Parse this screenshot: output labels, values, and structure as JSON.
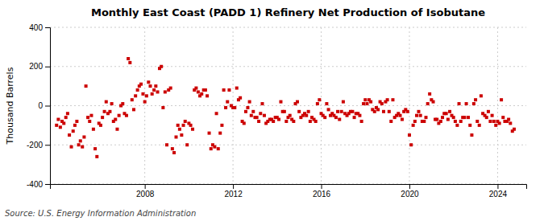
{
  "chart_data": {
    "type": "scatter",
    "title": "Monthly East Coast (PADD 1) Refinery Net Production of Isobutane",
    "ylabel": "Thousand Barrels",
    "annotations": [
      "Source: U.S. Energy Information Administration"
    ],
    "color": "#cc0000",
    "marker": "square",
    "grid": true,
    "x": [
      2004.0,
      2004.08,
      2004.17,
      2004.25,
      2004.33,
      2004.42,
      2004.5,
      2004.58,
      2004.67,
      2004.75,
      2004.83,
      2004.92,
      2005.0,
      2005.08,
      2005.17,
      2005.25,
      2005.33,
      2005.42,
      2005.5,
      2005.58,
      2005.67,
      2005.75,
      2005.83,
      2005.92,
      2006.0,
      2006.08,
      2006.17,
      2006.25,
      2006.33,
      2006.42,
      2006.5,
      2006.58,
      2006.67,
      2006.75,
      2006.83,
      2006.92,
      2007.0,
      2007.08,
      2007.17,
      2007.25,
      2007.33,
      2007.42,
      2007.5,
      2007.58,
      2007.67,
      2007.75,
      2007.83,
      2007.92,
      2008.0,
      2008.08,
      2008.17,
      2008.25,
      2008.33,
      2008.42,
      2008.5,
      2008.58,
      2008.67,
      2008.75,
      2008.83,
      2008.92,
      2009.0,
      2009.08,
      2009.17,
      2009.25,
      2009.33,
      2009.42,
      2009.5,
      2009.58,
      2009.67,
      2009.75,
      2009.83,
      2009.92,
      2010.0,
      2010.08,
      2010.17,
      2010.25,
      2010.33,
      2010.42,
      2010.5,
      2010.58,
      2010.67,
      2010.75,
      2010.83,
      2010.92,
      2011.0,
      2011.08,
      2011.17,
      2011.25,
      2011.33,
      2011.42,
      2011.5,
      2011.58,
      2011.67,
      2011.75,
      2011.83,
      2011.92,
      2012.0,
      2012.08,
      2012.17,
      2012.25,
      2012.33,
      2012.42,
      2012.5,
      2012.58,
      2012.67,
      2012.75,
      2012.83,
      2012.92,
      2013.0,
      2013.08,
      2013.17,
      2013.25,
      2013.33,
      2013.42,
      2013.5,
      2013.58,
      2013.67,
      2013.75,
      2013.83,
      2013.92,
      2014.0,
      2014.08,
      2014.17,
      2014.25,
      2014.33,
      2014.42,
      2014.5,
      2014.58,
      2014.67,
      2014.75,
      2014.83,
      2014.92,
      2015.0,
      2015.08,
      2015.17,
      2015.25,
      2015.33,
      2015.42,
      2015.5,
      2015.58,
      2015.67,
      2015.75,
      2015.83,
      2015.92,
      2016.0,
      2016.08,
      2016.17,
      2016.25,
      2016.33,
      2016.42,
      2016.5,
      2016.58,
      2016.67,
      2016.75,
      2016.83,
      2016.92,
      2017.0,
      2017.08,
      2017.17,
      2017.25,
      2017.33,
      2017.42,
      2017.5,
      2017.58,
      2017.67,
      2017.75,
      2017.83,
      2017.92,
      2018.0,
      2018.08,
      2018.17,
      2018.25,
      2018.33,
      2018.42,
      2018.5,
      2018.58,
      2018.67,
      2018.75,
      2018.83,
      2018.92,
      2019.0,
      2019.08,
      2019.17,
      2019.25,
      2019.33,
      2019.42,
      2019.5,
      2019.58,
      2019.67,
      2019.75,
      2019.83,
      2019.92,
      2020.0,
      2020.08,
      2020.17,
      2020.25,
      2020.33,
      2020.42,
      2020.5,
      2020.58,
      2020.67,
      2020.75,
      2020.83,
      2020.92,
      2021.0,
      2021.08,
      2021.17,
      2021.25,
      2021.33,
      2021.42,
      2021.5,
      2021.58,
      2021.67,
      2021.75,
      2021.83,
      2021.92,
      2022.0,
      2022.08,
      2022.17,
      2022.25,
      2022.33,
      2022.42,
      2022.5,
      2022.58,
      2022.67,
      2022.75,
      2022.83,
      2022.92,
      2023.0,
      2023.08,
      2023.17,
      2023.25,
      2023.33,
      2023.42,
      2023.5,
      2023.58,
      2023.67,
      2023.75,
      2023.83,
      2023.92,
      2024.0,
      2024.08,
      2024.17,
      2024.25,
      2024.33,
      2024.42,
      2024.5,
      2024.58,
      2024.67,
      2024.75
    ],
    "values": [
      -100,
      -70,
      -110,
      -80,
      -90,
      -60,
      -40,
      -150,
      -210,
      -130,
      -100,
      -80,
      -200,
      -180,
      -210,
      -160,
      100,
      -60,
      -80,
      -50,
      -120,
      -220,
      -260,
      -90,
      -100,
      -60,
      -30,
      20,
      -40,
      -30,
      10,
      -80,
      -70,
      -120,
      -50,
      0,
      10,
      -40,
      -50,
      240,
      220,
      30,
      -20,
      50,
      80,
      100,
      110,
      60,
      20,
      50,
      120,
      100,
      60,
      80,
      100,
      70,
      190,
      200,
      -10,
      70,
      -200,
      80,
      90,
      -220,
      -240,
      -160,
      -100,
      -120,
      -150,
      -100,
      -80,
      -200,
      -90,
      -100,
      -120,
      80,
      90,
      70,
      50,
      60,
      80,
      80,
      50,
      -140,
      -220,
      -200,
      -210,
      -40,
      -220,
      -140,
      -100,
      80,
      -10,
      20,
      80,
      0,
      -10,
      -10,
      90,
      30,
      40,
      -80,
      -90,
      -30,
      -10,
      20,
      -50,
      -30,
      -60,
      -60,
      -80,
      -40,
      10,
      -50,
      -90,
      -80,
      -70,
      -70,
      -80,
      -60,
      -60,
      -70,
      20,
      -30,
      -30,
      -80,
      -60,
      -50,
      -70,
      -80,
      10,
      20,
      -30,
      -60,
      -50,
      -40,
      -50,
      -30,
      -80,
      -60,
      -70,
      -80,
      10,
      30,
      -40,
      -50,
      -60,
      10,
      -20,
      -50,
      -40,
      -50,
      -60,
      -30,
      -70,
      -30,
      20,
      -40,
      -50,
      -40,
      -30,
      -30,
      -60,
      -40,
      -40,
      -50,
      -80,
      10,
      30,
      10,
      30,
      20,
      -20,
      -30,
      -10,
      -20,
      20,
      10,
      -30,
      20,
      30,
      -30,
      -80,
      30,
      -60,
      -50,
      -40,
      -50,
      -70,
      -30,
      -20,
      -30,
      -150,
      -200,
      -100,
      -80,
      -50,
      -30,
      -50,
      -80,
      -80,
      -60,
      10,
      60,
      30,
      20,
      -70,
      -70,
      -90,
      -80,
      -60,
      -40,
      -40,
      -70,
      -30,
      -50,
      -60,
      -80,
      -100,
      10,
      -80,
      -60,
      -60,
      10,
      -60,
      -100,
      -150,
      10,
      30,
      -80,
      -100,
      50,
      -40,
      -50,
      -60,
      -30,
      -80,
      -50,
      -80,
      -100,
      -80,
      -90,
      30,
      -60,
      -80,
      -80,
      -70,
      -90,
      -130,
      -120
    ],
    "xlim": [
      2003.7,
      2025.3
    ],
    "xticks": [
      2008,
      2012,
      2016,
      2020,
      2024
    ],
    "ylim": [
      -400,
      400
    ],
    "yticks": [
      -400,
      -200,
      0,
      200,
      400
    ]
  }
}
